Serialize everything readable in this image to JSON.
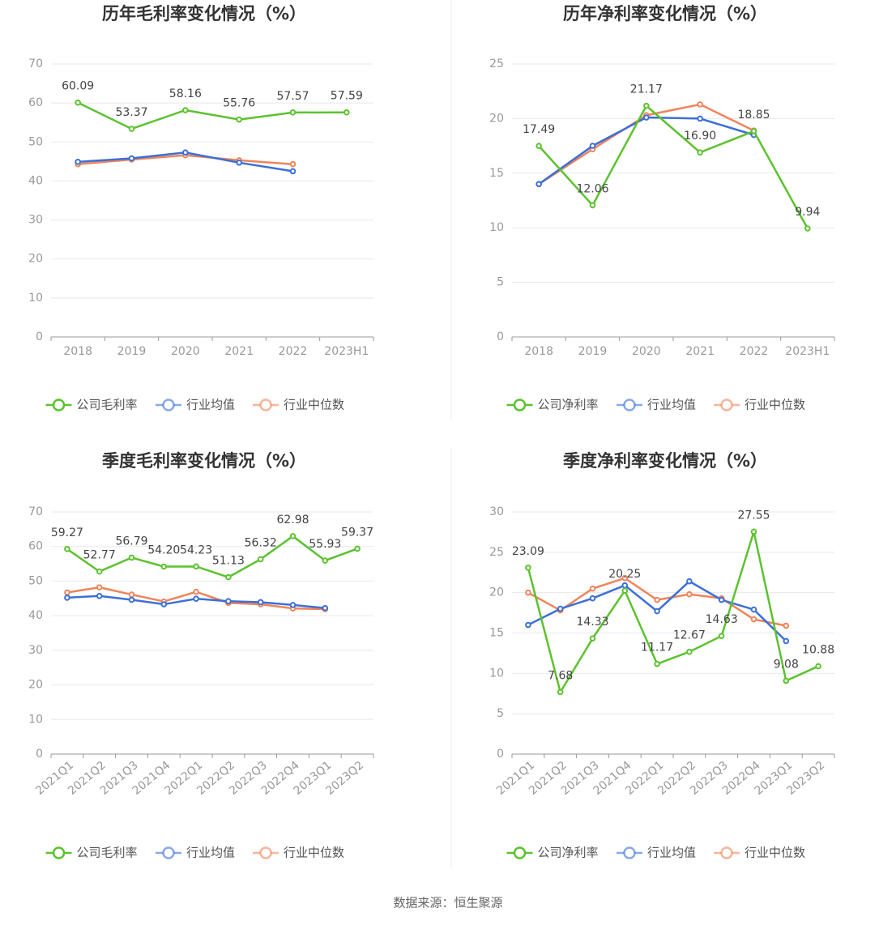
{
  "chart_data": [
    {
      "type": "line",
      "title": "历年毛利率变化情况（%）",
      "categories": [
        "2018",
        "2019",
        "2020",
        "2021",
        "2022",
        "2023H1"
      ],
      "ylim": [
        0,
        70
      ],
      "yticks": [
        0,
        10,
        20,
        30,
        40,
        50,
        60,
        70
      ],
      "grid": true,
      "series": [
        {
          "name": "公司毛利率",
          "color": "#5cc22e",
          "values": [
            60.09,
            53.37,
            58.16,
            55.76,
            57.57,
            57.59
          ]
        },
        {
          "name": "行业均值",
          "color": "#3b6fd8",
          "values": [
            44.9,
            45.8,
            47.3,
            44.7,
            42.5,
            null
          ]
        },
        {
          "name": "行业中位数",
          "color": "#f0845a",
          "values": [
            44.3,
            45.5,
            46.6,
            45.3,
            44.3,
            null
          ]
        }
      ]
    },
    {
      "type": "line",
      "title": "历年净利率变化情况（%）",
      "categories": [
        "2018",
        "2019",
        "2020",
        "2021",
        "2022",
        "2023H1"
      ],
      "ylim": [
        0,
        25
      ],
      "yticks": [
        0,
        5,
        10,
        15,
        20,
        25
      ],
      "grid": true,
      "series": [
        {
          "name": "公司净利率",
          "color": "#5cc22e",
          "values": [
            17.49,
            12.06,
            21.17,
            16.9,
            18.85,
            9.94
          ],
          "value_labels": [
            "17.49",
            "12.06",
            "21.17",
            "16.90",
            "18.85",
            "9.94"
          ]
        },
        {
          "name": "行业均值",
          "color": "#3b6fd8",
          "values": [
            14.0,
            17.5,
            20.1,
            20.0,
            18.5,
            null
          ]
        },
        {
          "name": "行业中位数",
          "color": "#f0845a",
          "values": [
            14.0,
            17.2,
            20.3,
            21.3,
            18.9,
            null
          ]
        }
      ]
    },
    {
      "type": "line",
      "title": "季度毛利率变化情况（%）",
      "categories": [
        "2021Q1",
        "2021Q2",
        "2021Q3",
        "2021Q4",
        "2022Q1",
        "2022Q2",
        "2022Q3",
        "2022Q4",
        "2023Q1",
        "2023Q2"
      ],
      "ylim": [
        0,
        70
      ],
      "yticks": [
        0,
        10,
        20,
        30,
        40,
        50,
        60,
        70
      ],
      "grid": true,
      "series": [
        {
          "name": "公司毛利率",
          "color": "#5cc22e",
          "values": [
            59.27,
            52.77,
            56.79,
            54.2,
            54.23,
            51.13,
            56.32,
            62.98,
            55.93,
            59.37
          ],
          "value_labels": [
            "59.27",
            "52.77",
            "56.79",
            "54.20",
            "54.23",
            "51.13",
            "56.32",
            "62.98",
            "55.93",
            "59.37"
          ]
        },
        {
          "name": "行业均值",
          "color": "#3b6fd8",
          "values": [
            45.2,
            45.7,
            44.6,
            43.3,
            44.9,
            44.2,
            43.9,
            43.1,
            42.2,
            null
          ]
        },
        {
          "name": "行业中位数",
          "color": "#f0845a",
          "values": [
            46.7,
            48.2,
            46.1,
            44.1,
            46.9,
            43.7,
            43.3,
            42.1,
            41.9,
            null
          ]
        }
      ]
    },
    {
      "type": "line",
      "title": "季度净利率变化情况（%）",
      "categories": [
        "2021Q1",
        "2021Q2",
        "2021Q3",
        "2021Q4",
        "2022Q1",
        "2022Q2",
        "2022Q3",
        "2022Q4",
        "2023Q1",
        "2023Q2"
      ],
      "ylim": [
        0,
        30
      ],
      "yticks": [
        0,
        5,
        10,
        15,
        20,
        25,
        30
      ],
      "grid": true,
      "series": [
        {
          "name": "公司净利率",
          "color": "#5cc22e",
          "values": [
            23.09,
            7.68,
            14.33,
            20.25,
            11.17,
            12.67,
            14.63,
            27.55,
            9.08,
            10.88
          ]
        },
        {
          "name": "行业均值",
          "color": "#3b6fd8",
          "values": [
            16.0,
            18.0,
            19.3,
            20.9,
            17.7,
            21.4,
            19.1,
            17.9,
            14.0,
            null
          ]
        },
        {
          "name": "行业中位数",
          "color": "#f0845a",
          "values": [
            20.0,
            17.8,
            20.5,
            21.8,
            19.1,
            19.8,
            19.3,
            16.7,
            15.9,
            null
          ]
        }
      ]
    }
  ],
  "source": "数据来源：恒生聚源"
}
